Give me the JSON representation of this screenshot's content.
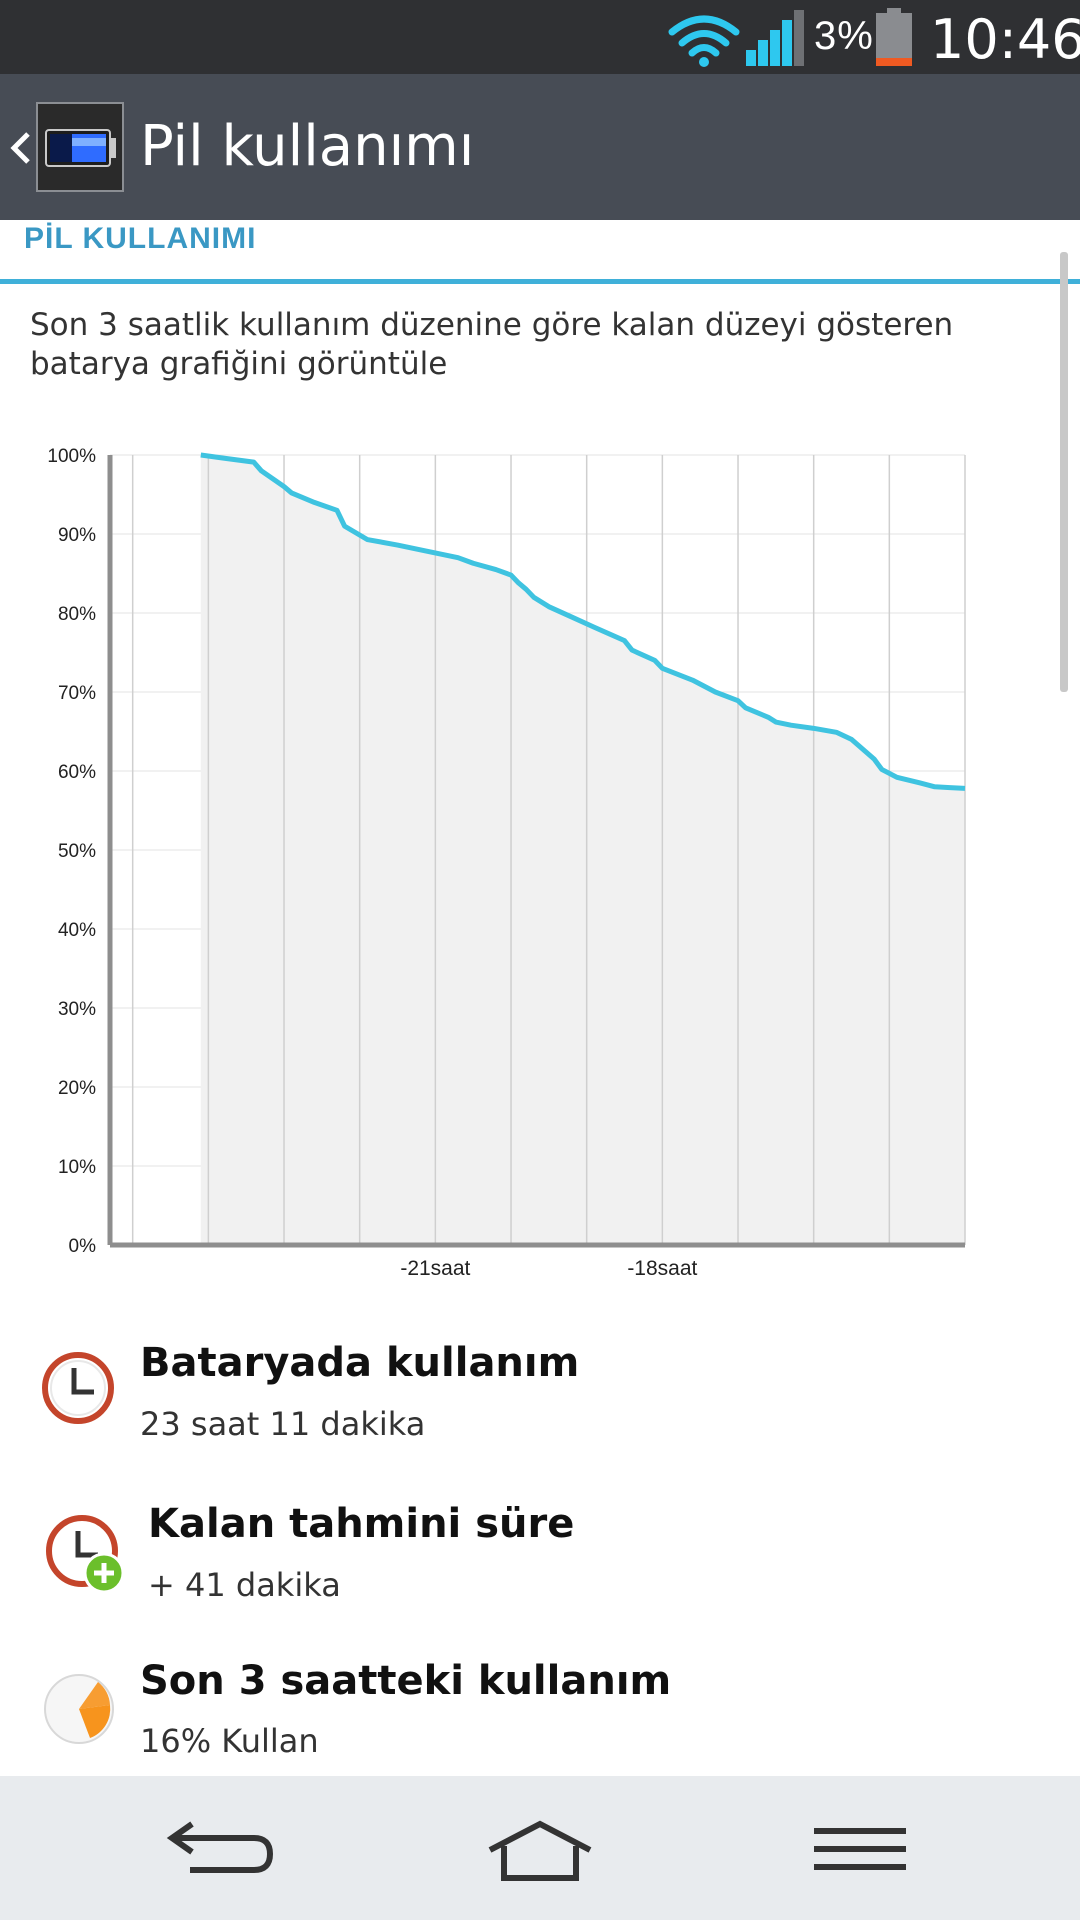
{
  "status_bar": {
    "battery_pct": "3%",
    "time": "10:46"
  },
  "action_bar": {
    "title": "Pil kullanımı"
  },
  "section": {
    "header": "PİL KULLANIMI"
  },
  "description": "Son 3 saatlik kullanım düzenine göre kalan düzeyi gösteren batarya grafiğini görüntüle",
  "chart_data": {
    "type": "area",
    "y_ticks": [
      "100%",
      "90%",
      "80%",
      "70%",
      "60%",
      "50%",
      "40%",
      "30%",
      "20%",
      "10%",
      "0%"
    ],
    "x_tick_labels": [
      "-21saat",
      "-18saat"
    ],
    "ylim": [
      0,
      100
    ],
    "grid": true,
    "series": [
      {
        "values": [
          [
            -24.1,
            100
          ],
          [
            -23.8,
            99.6
          ],
          [
            -23.4,
            99.1
          ],
          [
            -23.3,
            98
          ],
          [
            -23.0,
            96
          ],
          [
            -22.9,
            95.2
          ],
          [
            -22.6,
            94
          ],
          [
            -22.3,
            93
          ],
          [
            -22.2,
            91
          ],
          [
            -21.9,
            89.3
          ],
          [
            -21.5,
            88.6
          ],
          [
            -21.2,
            88.0
          ],
          [
            -20.7,
            87.0
          ],
          [
            -20.5,
            86.3
          ],
          [
            -20.2,
            85.5
          ],
          [
            -20.0,
            84.8
          ],
          [
            -19.9,
            83.8
          ],
          [
            -19.8,
            83
          ],
          [
            -19.7,
            82
          ],
          [
            -19.5,
            80.8
          ],
          [
            -19.2,
            79.5
          ],
          [
            -18.9,
            78.2
          ],
          [
            -18.5,
            76.5
          ],
          [
            -18.4,
            75.3
          ],
          [
            -18.1,
            74.0
          ],
          [
            -18.0,
            73.0
          ],
          [
            -17.6,
            71.5
          ],
          [
            -17.3,
            70.0
          ],
          [
            -17.0,
            68.9
          ],
          [
            -16.9,
            68.0
          ],
          [
            -16.6,
            66.8
          ],
          [
            -16.5,
            66.2
          ],
          [
            -16.3,
            65.8
          ],
          [
            -16.0,
            65.4
          ],
          [
            -15.7,
            64.9
          ],
          [
            -15.5,
            64.0
          ],
          [
            -15.2,
            61.5
          ],
          [
            -15.1,
            60.2
          ],
          [
            -14.9,
            59.2
          ],
          [
            -14.6,
            58.5
          ],
          [
            -14.4,
            58.0
          ],
          [
            -14.2,
            57.9
          ],
          [
            -14.0,
            57.8
          ]
        ],
        "color": "#3fc3e0"
      }
    ],
    "x_tick_values": [
      -21,
      -18
    ],
    "xlim": [
      -25.3,
      -14.0
    ]
  },
  "items": [
    {
      "title": "Bataryada kullanım",
      "subtitle": "23 saat 11 dakika",
      "icon": "clock-icon"
    },
    {
      "title": "Kalan tahmini süre",
      "subtitle": "+ 41 dakika",
      "icon": "clock-plus-icon"
    },
    {
      "title": "Son 3 saatteki kullanım",
      "subtitle": "16% Kullan",
      "icon": "pie-icon"
    }
  ],
  "colors": {
    "accent": "#3fb0d9",
    "line": "#3fc3e0",
    "action_bar": "#474c55",
    "status_bar": "#2f3033"
  }
}
